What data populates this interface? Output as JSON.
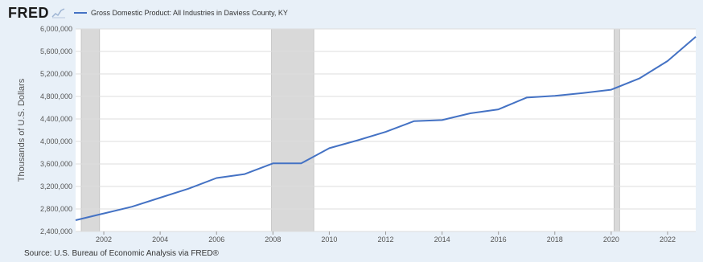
{
  "header": {
    "logo_text": "FRED",
    "legend_label": "Gross Domestic Product: All Industries in Daviess County, KY"
  },
  "source": "Source: U.S. Bureau of Economic Analysis via FRED®",
  "colors": {
    "line": "#4472c4",
    "recession": "#d9d9d9",
    "plot_background": "#ffffff",
    "frame_background": "#e8f0f8",
    "grid": "#dddddd"
  },
  "chart_data": {
    "type": "line",
    "title": "",
    "legend": [
      "Gross Domestic Product: All Industries in Daviess County, KY"
    ],
    "xlabel": "",
    "ylabel": "Thousands of U.S. Dollars",
    "xlim": [
      2001,
      2023
    ],
    "ylim": [
      2400000,
      6000000
    ],
    "grid": true,
    "x_ticks": [
      2002,
      2004,
      2006,
      2008,
      2010,
      2012,
      2014,
      2016,
      2018,
      2020,
      2022
    ],
    "x_tick_labels": [
      "2002",
      "2004",
      "2006",
      "2008",
      "2010",
      "2012",
      "2014",
      "2016",
      "2018",
      "2020",
      "2022"
    ],
    "y_ticks": [
      2400000,
      2800000,
      3200000,
      3600000,
      4000000,
      4400000,
      4800000,
      5200000,
      5600000,
      6000000
    ],
    "y_tick_labels": [
      "2,400,000",
      "2,800,000",
      "3,200,000",
      "3,600,000",
      "4,000,000",
      "4,400,000",
      "4,800,000",
      "5,200,000",
      "5,600,000",
      "6,000,000"
    ],
    "recessions": [
      {
        "start": 2001.2,
        "end": 2001.85
      },
      {
        "start": 2007.95,
        "end": 2009.45
      },
      {
        "start": 2020.1,
        "end": 2020.3
      }
    ],
    "series": [
      {
        "name": "Gross Domestic Product: All Industries in Daviess County, KY",
        "x": [
          2001,
          2002,
          2003,
          2004,
          2005,
          2006,
          2007,
          2008,
          2009,
          2010,
          2011,
          2012,
          2013,
          2014,
          2015,
          2016,
          2017,
          2018,
          2019,
          2020,
          2021,
          2022,
          2023
        ],
        "values": [
          2600000,
          2720000,
          2840000,
          3000000,
          3160000,
          3350000,
          3420000,
          3610000,
          3610000,
          3880000,
          4020000,
          4170000,
          4360000,
          4380000,
          4500000,
          4570000,
          4780000,
          4810000,
          4860000,
          4920000,
          5120000,
          5430000,
          5860000
        ]
      }
    ]
  }
}
